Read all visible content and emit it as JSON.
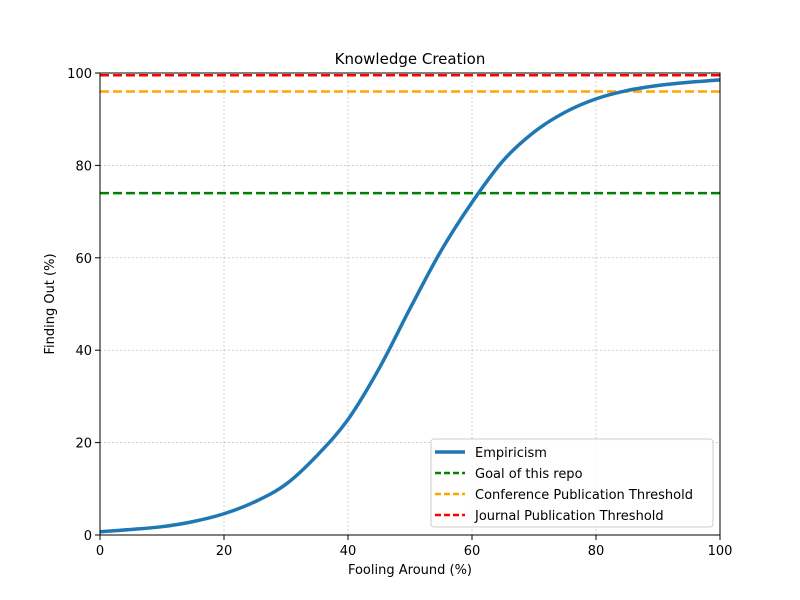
{
  "chart_data": {
    "type": "line",
    "title": "Knowledge Creation",
    "xlabel": "Fooling Around (%)",
    "ylabel": "Finding Out (%)",
    "xlim": [
      0,
      100
    ],
    "ylim": [
      0,
      100
    ],
    "xticks": [
      0,
      20,
      40,
      60,
      80,
      100
    ],
    "yticks": [
      0,
      20,
      40,
      60,
      80,
      100
    ],
    "grid": true,
    "legend_position": "bottom-right",
    "series": [
      {
        "name": "Empiricism",
        "color": "#1f77b4",
        "x": [
          0,
          5,
          10,
          15,
          20,
          25,
          30,
          35,
          40,
          45,
          50,
          55,
          60,
          65,
          70,
          75,
          80,
          85,
          90,
          95,
          100
        ],
        "y": [
          0.7,
          1.2,
          1.8,
          2.9,
          4.6,
          7.2,
          11.0,
          17.2,
          25.0,
          36.0,
          49.0,
          61.5,
          72.0,
          81.0,
          87.2,
          91.5,
          94.4,
          96.2,
          97.3,
          98.0,
          98.5
        ]
      }
    ],
    "reference_lines": [
      {
        "name": "Goal of this repo",
        "y": 74,
        "color": "#008000"
      },
      {
        "name": "Conference Publication Threshold",
        "y": 96,
        "color": "#ffa500"
      },
      {
        "name": "Journal Publication Threshold",
        "y": 99.5,
        "color": "#ff0000"
      }
    ]
  }
}
